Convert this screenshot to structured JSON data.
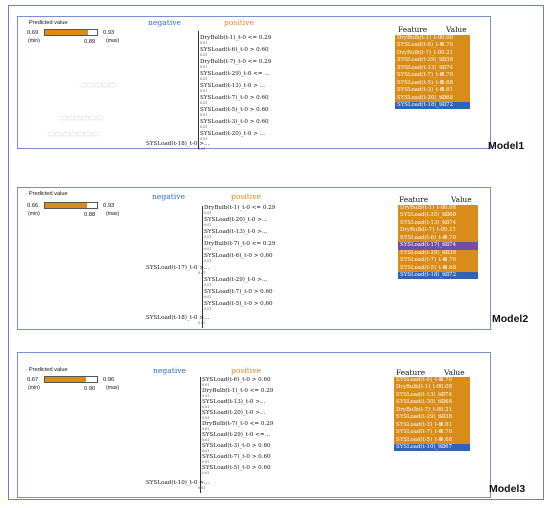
{
  "colors": {
    "orange": "#d98c1a",
    "blue": "#2f64b4",
    "purple": "#6c4fa8",
    "negative": "#2c6ad3",
    "positive": "#e08a1c"
  },
  "models": [
    {
      "label": "Model1",
      "predicted": {
        "title": "Predicted value",
        "value": "0.69",
        "min": "(min)",
        "max_value": "0.93",
        "max": "(max)",
        "mark": "0.89",
        "fill_fraction": 0.83
      },
      "negative_label": "negative",
      "positive_label": "positive",
      "features": [
        {
          "text": "DryBulb(t-1)_t-0 <= 0.29",
          "value": "0.01"
        },
        {
          "text": "SYSLoad(t-6)_t-0 > 0.60",
          "value": "0.01"
        },
        {
          "text": "DryBulb(t-7)_t-0 <= 0.29",
          "value": "0.01"
        },
        {
          "text": "SYSLoad(t-29)_t-0 <= ...",
          "value": "0.01"
        },
        {
          "text": "SYSLoad(t-13)_t-0 > ...",
          "value": "0.01"
        },
        {
          "text": "SYSLoad(t-7)_t-0 > 0.60",
          "value": "0.01"
        },
        {
          "text": "SYSLoad(t-5)_t-0 > 0.60",
          "value": "0.01"
        },
        {
          "text": "SYSLoad(t-3)_t-0 > 0.60",
          "value": "0.01"
        },
        {
          "text": "SYSLoad(t-20)_t-0 > ...",
          "value": "0.01"
        },
        {
          "text": "SYSLoad(t-18)_t-0 >...",
          "value": "0.01"
        }
      ],
      "table": {
        "header_feature": "Feature",
        "header_value": "Value",
        "rows": [
          {
            "name": "DryBulb(t-1)_t-0",
            "value": "0.08",
            "color": "orange"
          },
          {
            "name": "SYSLoad(t-6)_t-0",
            "value": "0.70",
            "color": "orange"
          },
          {
            "name": "DryBulb(t-7)_t-0",
            "value": "0.21",
            "color": "orange"
          },
          {
            "name": "SYSLoad(t-29)_t-0",
            "value": "0.38",
            "color": "orange"
          },
          {
            "name": "SYSLoad(t-13)_t-0",
            "value": "0.74",
            "color": "orange"
          },
          {
            "name": "SYSLoad(t-7)_t-0",
            "value": "0.70",
            "color": "orange"
          },
          {
            "name": "SYSLoad(t-5)_t-0",
            "value": "0.68",
            "color": "orange"
          },
          {
            "name": "SYSLoad(t-3)_t-0",
            "value": "0.61",
            "color": "orange"
          },
          {
            "name": "SYSLoad(t-20)_t-0",
            "value": "0.68",
            "color": "orange"
          },
          {
            "name": "SYSLoad(t-18)_t-0",
            "value": "0.72",
            "color": "blue"
          }
        ]
      }
    },
    {
      "label": "Model2",
      "predicted": {
        "title": "Predicted value",
        "value": "0.66",
        "min": "(min)",
        "max_value": "0.93",
        "max": "(max)",
        "mark": "0.88",
        "fill_fraction": 0.8
      },
      "negative_label": "negative",
      "positive_label": "positive",
      "features": [
        {
          "text": "DryBulb(t-1)_t-0 <= 0.29",
          "value": "0.01"
        },
        {
          "text": "SYSLoad(t-20)_t-0 >...",
          "value": "0.01"
        },
        {
          "text": "SYSLoad(t-13)_t-0 >...",
          "value": "0.01"
        },
        {
          "text": "DryBulb(t-7)_t-0 <= 0.29",
          "value": "0.01"
        },
        {
          "text": "SYSLoad(t-6)_t-0 > 0.60",
          "value": "0.01"
        },
        {
          "text": "SYSLoad(t-17)_t-0 >...",
          "value": "0.01"
        },
        {
          "text": "SYSLoad(t-29)_t-0 >...",
          "value": "0.01"
        },
        {
          "text": "SYSLoad(t-7)_t-0 > 0.60",
          "value": "0.01"
        },
        {
          "text": "SYSLoad(t-5)_t-0 > 0.60",
          "value": "0.01"
        },
        {
          "text": "SYSLoad(t-18)_t-0 >...",
          "value": "0.01"
        }
      ],
      "table": {
        "header_feature": "Feature",
        "header_value": "Value",
        "rows": [
          {
            "name": "DryBulb(t-1)_t-0",
            "value": "0.08",
            "color": "orange"
          },
          {
            "name": "SYSLoad(t-20)_t-0",
            "value": "0.68",
            "color": "orange"
          },
          {
            "name": "SYSLoad(t-13)_t-0",
            "value": "0.74",
            "color": "orange"
          },
          {
            "name": "DryBulb(t-7)_t-0",
            "value": "0.21",
            "color": "orange"
          },
          {
            "name": "SYSLoad(t-6)_t-0",
            "value": "0.70",
            "color": "orange"
          },
          {
            "name": "SYSLoad(t-17)_t-0",
            "value": "0.74",
            "color": "purple"
          },
          {
            "name": "SYSLoad(t-29)_t-0",
            "value": "0.38",
            "color": "orange"
          },
          {
            "name": "SYSLoad(t-7)_t-0",
            "value": "0.70",
            "color": "orange"
          },
          {
            "name": "SYSLoad(t-5)_t-0",
            "value": "0.68",
            "color": "orange"
          },
          {
            "name": "SYSLoad(t-18)_t-0",
            "value": "0.72",
            "color": "blue"
          }
        ]
      }
    },
    {
      "label": "Model3",
      "predicted": {
        "title": "Predicted value",
        "value": "0.67",
        "min": "(min)",
        "max_value": "0.96",
        "max": "(max)",
        "mark": "0.90",
        "fill_fraction": 0.79
      },
      "negative_label": "negative",
      "positive_label": "positive",
      "features": [
        {
          "text": "SYSLoad(t-6)_t-0 > 0.60",
          "value": "0.01"
        },
        {
          "text": "DryBulb(t-1)_t-0 <= 0.29",
          "value": "0.01"
        },
        {
          "text": "SYSLoad(t-13)_t-0 >...",
          "value": "0.01"
        },
        {
          "text": "SYSLoad(t-20)_t-0 >...",
          "value": "0.01"
        },
        {
          "text": "DryBulb(t-7)_t-0 <= 0.29",
          "value": "0.01"
        },
        {
          "text": "SYSLoad(t-29)_t-0 <=...",
          "value": "0.01"
        },
        {
          "text": "SYSLoad(t-3)_t-0 > 0.60",
          "value": "0.01"
        },
        {
          "text": "SYSLoad(t-7)_t-0 > 0.60",
          "value": "0.01"
        },
        {
          "text": "SYSLoad(t-5)_t-0 > 0.60",
          "value": "0.01"
        },
        {
          "text": "SYSLoad(t-10)_t-0 >...",
          "value": "0.01"
        }
      ],
      "table": {
        "header_feature": "Feature",
        "header_value": "Value",
        "rows": [
          {
            "name": "SYSLoad(t-6)_t-0",
            "value": "0.70",
            "color": "orange"
          },
          {
            "name": "DryBulb(t-1)_t-0",
            "value": "0.08",
            "color": "orange"
          },
          {
            "name": "SYSLoad(t-13)_t-0",
            "value": "0.74",
            "color": "orange"
          },
          {
            "name": "SYSLoad(t-20)_t-0",
            "value": "0.68",
            "color": "orange"
          },
          {
            "name": "DryBulb(t-7)_t-0",
            "value": "0.21",
            "color": "orange"
          },
          {
            "name": "SYSLoad(t-29)_t-0",
            "value": "0.38",
            "color": "orange"
          },
          {
            "name": "SYSLoad(t-3)_t-0",
            "value": "0.61",
            "color": "orange"
          },
          {
            "name": "SYSLoad(t-7)_t-0",
            "value": "0.70",
            "color": "orange"
          },
          {
            "name": "SYSLoad(t-5)_t-0",
            "value": "0.68",
            "color": "orange"
          },
          {
            "name": "SYSLoad(t-10)_t-0",
            "value": "0.67",
            "color": "blue"
          }
        ]
      }
    }
  ]
}
